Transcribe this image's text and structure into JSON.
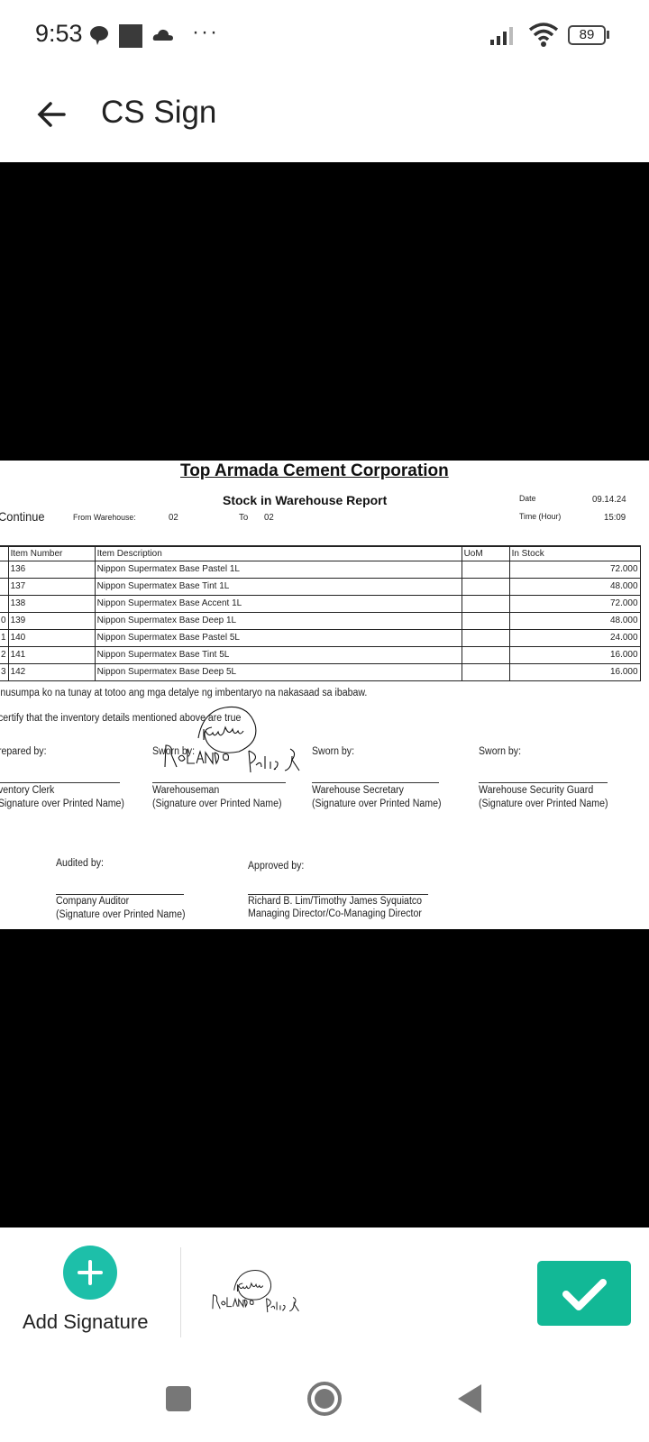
{
  "status_bar": {
    "time": "9:53",
    "battery": "89",
    "icons": [
      "chat-bubble-icon",
      "square-notification-icon",
      "cloud-icon",
      "more-dots-icon",
      "signal-icon",
      "wifi-icon",
      "battery-icon"
    ]
  },
  "app_bar": {
    "title": "CS Sign",
    "back_icon": "arrow-left-icon"
  },
  "document": {
    "company": "Top Armada Cement Corporation",
    "report_title": "Stock in Warehouse Report",
    "continue_label": "Continue",
    "from_warehouse_label": "From Warehouse:",
    "from_warehouse_value": "02",
    "to_label": "To",
    "to_value": "02",
    "date_label": "Date",
    "date_value": "09.14.24",
    "time_label": "Time (Hour)",
    "time_value": "15:09",
    "columns": [
      "Item Number",
      "Item Description",
      "UoM",
      "In Stock"
    ],
    "rows": [
      {
        "idx": "",
        "item": "136",
        "desc": "Nippon Supermatex Base Pastel 1L",
        "uom": "",
        "stock": "72.000"
      },
      {
        "idx": "",
        "item": "137",
        "desc": "Nippon Supermatex Base Tint 1L",
        "uom": "",
        "stock": "48.000"
      },
      {
        "idx": "",
        "item": "138",
        "desc": "Nippon Supermatex Base Accent 1L",
        "uom": "",
        "stock": "72.000"
      },
      {
        "idx": "0",
        "item": "139",
        "desc": "Nippon Supermatex Base Deep 1L",
        "uom": "",
        "stock": "48.000"
      },
      {
        "idx": "1",
        "item": "140",
        "desc": "Nippon Supermatex Base Pastel 5L",
        "uom": "",
        "stock": "24.000"
      },
      {
        "idx": "2",
        "item": "141",
        "desc": "Nippon Supermatex Base Tint 5L",
        "uom": "",
        "stock": "16.000"
      },
      {
        "idx": "3",
        "item": "142",
        "desc": "Nippon Supermatex Base Deep 5L",
        "uom": "",
        "stock": "16.000"
      }
    ],
    "oath_filipino": "inusumpa ko na tunay at totoo ang mga detalye ng imbentaryo na nakasaad sa ibabaw.",
    "oath_english": "certify that the inventory details mentioned above are true",
    "signatories": [
      {
        "caption": "repared by:",
        "role": "ventory Clerk",
        "note": "Signature over Printed Name)"
      },
      {
        "caption": "Sworn by:",
        "role": "Warehouseman",
        "note": "(Signature over Printed Name)"
      },
      {
        "caption": "Sworn by:",
        "role": "Warehouse Secretary",
        "note": "(Signature over Printed Name)"
      },
      {
        "caption": "Sworn by:",
        "role": "Warehouse Security Guard",
        "note": "(Signature over Printed Name)"
      }
    ],
    "audited": {
      "caption": "Audited by:",
      "role": "Company Auditor",
      "note": "(Signature over Printed Name)"
    },
    "approved": {
      "caption": "Approved by:",
      "name": "Richard B. Lim/Timothy James Syquiatco",
      "title": "Managing Director/Co-Managing Director"
    },
    "signature_text": "ROLANDO DELIS SR"
  },
  "bottom_bar": {
    "add_signature_label": "Add Signature",
    "confirm_icon": "checkmark-icon",
    "accent": "#1dbfa9",
    "confirm_color": "#12b896"
  },
  "nav_bar": {
    "icons": [
      "recents-square-icon",
      "home-circle-icon",
      "back-triangle-icon"
    ]
  }
}
